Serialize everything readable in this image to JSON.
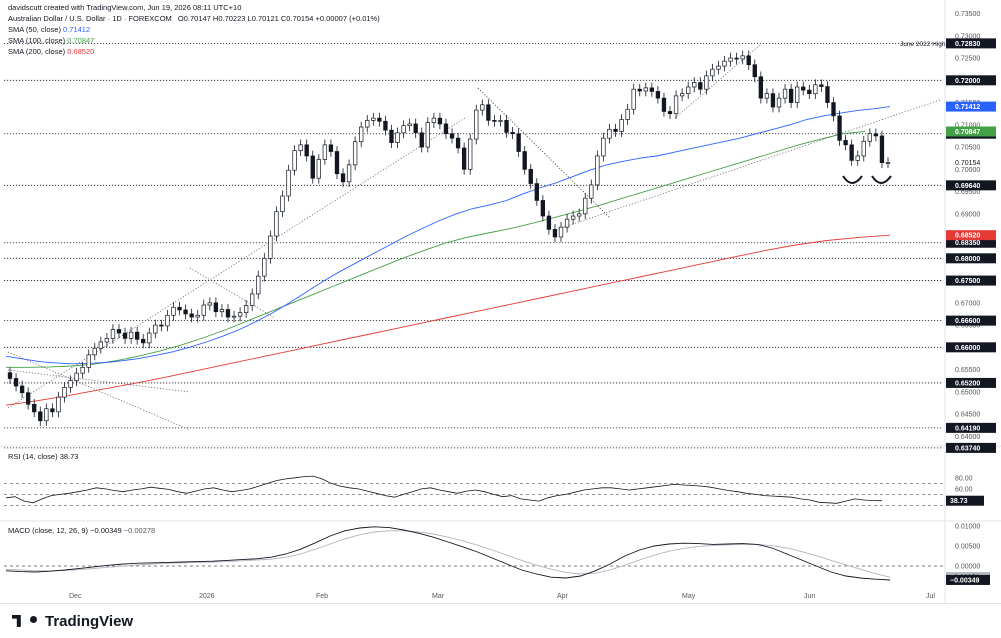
{
  "header": {
    "credit": "davidscutt created with TradingView.com, Jun 19, 2026 08:11 UTC+10",
    "symbol": "Australian Dollar / U.S. Dollar · 1D · FOREXCOM",
    "ohlc": "O0.70147 H0.70223 L0.70121 C0.70154 +0.00007 (+0.01%)",
    "sma50_label": "SMA (50, close)",
    "sma50_value": "0.71412",
    "sma100_label": "SMA (100, close)",
    "sma100_value": "0.70847",
    "sma200_label": "SMA (200, close)",
    "sma200_value": "0.68520",
    "rsi_label": "RSI (14, close)",
    "rsi_value": "38.73",
    "macd_label": "MACD (close, 12, 26, 9)",
    "macd_value": "−0.00349",
    "macd_signal_value": "−0.00278"
  },
  "colors": {
    "up": "#ffffff",
    "down": "#131722",
    "sma50": "#2962ff",
    "sma100": "#43a047",
    "sma200": "#e53935",
    "rsi": "#131722",
    "macd": "#131722",
    "signal": "#b2b5be"
  },
  "annotation": {
    "june_high": "June 2022 High"
  },
  "footer": {
    "brand": "TradingView"
  },
  "chart_data": {
    "type": "candlestick",
    "x_ticks": [
      "Dec",
      "2026",
      "Feb",
      "Mar",
      "Apr",
      "May",
      "Jun",
      "Jul"
    ],
    "y_ticks": [
      "0.73500",
      "0.73000",
      "0.72500",
      "0.72000",
      "0.71500",
      "0.71000",
      "0.70500",
      "0.70000",
      "0.69500",
      "0.69000",
      "0.68500",
      "0.68000",
      "0.67500",
      "0.67000",
      "0.66500",
      "0.66000",
      "0.65500",
      "0.65000",
      "0.64500",
      "0.64000"
    ],
    "ylim": [
      0.6385,
      0.7358
    ],
    "levels": [
      0.7283,
      0.72,
      0.708,
      0.6964,
      0.6835,
      0.68,
      0.675,
      0.666,
      0.66,
      0.652,
      0.6419,
      0.6374
    ],
    "level_labels": [
      "0.72830",
      "0.72000",
      "0.70800",
      "0.69640",
      "0.68350",
      "0.68000",
      "0.67500",
      "0.66600",
      "0.66000",
      "0.65200",
      "0.64190",
      "0.63740"
    ],
    "last_price": "0.70154",
    "candles_close": [
      0.653,
      0.6513,
      0.6498,
      0.6472,
      0.6455,
      0.6435,
      0.6462,
      0.6455,
      0.6488,
      0.651,
      0.6525,
      0.6542,
      0.6555,
      0.6583,
      0.6598,
      0.6612,
      0.662,
      0.664,
      0.6632,
      0.662,
      0.6634,
      0.6618,
      0.661,
      0.6632,
      0.665,
      0.6648,
      0.6672,
      0.669,
      0.6684,
      0.6675,
      0.6668,
      0.6672,
      0.6695,
      0.67,
      0.668,
      0.6685,
      0.6668,
      0.667,
      0.6678,
      0.6694,
      0.672,
      0.676,
      0.68,
      0.685,
      0.6905,
      0.694,
      0.6998,
      0.7042,
      0.7055,
      0.703,
      0.698,
      0.7022,
      0.7055,
      0.704,
      0.699,
      0.6972,
      0.701,
      0.7062,
      0.7095,
      0.711,
      0.7115,
      0.7108,
      0.7088,
      0.706,
      0.7082,
      0.7098,
      0.7102,
      0.7082,
      0.705,
      0.7105,
      0.7115,
      0.7102,
      0.708,
      0.707,
      0.7048,
      0.7,
      0.7068,
      0.7133,
      0.7145,
      0.711,
      0.7108,
      0.711,
      0.7083,
      0.708,
      0.704,
      0.7,
      0.6968,
      0.693,
      0.6895,
      0.6865,
      0.6848,
      0.687,
      0.6888,
      0.6895,
      0.69,
      0.6935,
      0.6965,
      0.703,
      0.707,
      0.709,
      0.7085,
      0.7112,
      0.7135,
      0.718,
      0.7176,
      0.7183,
      0.7175,
      0.716,
      0.713,
      0.7125,
      0.7165,
      0.717,
      0.7185,
      0.7195,
      0.718,
      0.721,
      0.7225,
      0.7232,
      0.7243,
      0.725,
      0.7248,
      0.7255,
      0.7235,
      0.7208,
      0.716,
      0.717,
      0.714,
      0.716,
      0.718,
      0.715,
      0.7185,
      0.7178,
      0.717,
      0.719,
      0.7186,
      0.715,
      0.712,
      0.7065,
      0.7055,
      0.702,
      0.703,
      0.7063,
      0.708,
      0.7075,
      0.7015,
      0.7015
    ],
    "candles_open": [
      0.6543,
      0.653,
      0.6513,
      0.6498,
      0.6472,
      0.6455,
      0.6435,
      0.6462,
      0.6455,
      0.6488,
      0.651,
      0.6525,
      0.6542,
      0.6555,
      0.6583,
      0.6598,
      0.6612,
      0.662,
      0.664,
      0.6632,
      0.662,
      0.6634,
      0.6618,
      0.661,
      0.6632,
      0.665,
      0.6648,
      0.6672,
      0.669,
      0.6684,
      0.6675,
      0.6668,
      0.6672,
      0.6695,
      0.67,
      0.668,
      0.6685,
      0.6668,
      0.667,
      0.6678,
      0.6694,
      0.672,
      0.676,
      0.68,
      0.685,
      0.6905,
      0.694,
      0.6998,
      0.7042,
      0.7055,
      0.703,
      0.698,
      0.7022,
      0.7055,
      0.704,
      0.699,
      0.6972,
      0.701,
      0.7062,
      0.7095,
      0.711,
      0.7115,
      0.7108,
      0.7088,
      0.706,
      0.7082,
      0.7098,
      0.7102,
      0.7082,
      0.705,
      0.7105,
      0.7115,
      0.7102,
      0.708,
      0.707,
      0.7048,
      0.7,
      0.7068,
      0.7133,
      0.7145,
      0.711,
      0.7108,
      0.711,
      0.7083,
      0.708,
      0.704,
      0.7,
      0.6968,
      0.693,
      0.6895,
      0.6865,
      0.6848,
      0.687,
      0.6888,
      0.6895,
      0.69,
      0.6935,
      0.6965,
      0.703,
      0.707,
      0.709,
      0.7085,
      0.7112,
      0.7135,
      0.718,
      0.7176,
      0.7183,
      0.7175,
      0.716,
      0.713,
      0.7125,
      0.7165,
      0.717,
      0.7185,
      0.7195,
      0.718,
      0.721,
      0.7225,
      0.7232,
      0.7243,
      0.725,
      0.7248,
      0.7255,
      0.7235,
      0.7208,
      0.716,
      0.717,
      0.714,
      0.716,
      0.718,
      0.715,
      0.7185,
      0.7178,
      0.717,
      0.719,
      0.7186,
      0.715,
      0.712,
      0.7065,
      0.7055,
      0.702,
      0.703,
      0.7063,
      0.708,
      0.7075,
      0.7015
    ],
    "sma50": [
      0.658,
      0.6574,
      0.6568,
      0.6565,
      0.6563,
      0.6564,
      0.6566,
      0.657,
      0.6575,
      0.6582,
      0.659,
      0.66,
      0.6612,
      0.6625,
      0.664,
      0.6658,
      0.6678,
      0.67,
      0.6724,
      0.6748,
      0.677,
      0.679,
      0.681,
      0.683,
      0.685,
      0.6868,
      0.6885,
      0.69,
      0.6912,
      0.692,
      0.693,
      0.6945,
      0.6958,
      0.697,
      0.6984,
      0.6998,
      0.701,
      0.7018,
      0.7025,
      0.703,
      0.7038,
      0.7046,
      0.7054,
      0.7062,
      0.707,
      0.708,
      0.709,
      0.71,
      0.7112,
      0.712,
      0.7126,
      0.7132,
      0.7136,
      0.7141
    ],
    "sma100": [
      0.6555,
      0.6555,
      0.6556,
      0.6558,
      0.6562,
      0.657,
      0.658,
      0.6592,
      0.6606,
      0.6622,
      0.664,
      0.666,
      0.668,
      0.67,
      0.672,
      0.674,
      0.676,
      0.678,
      0.68,
      0.6818,
      0.6835,
      0.6848,
      0.6858,
      0.6868,
      0.688,
      0.6893,
      0.6906,
      0.692,
      0.6935,
      0.695,
      0.6965,
      0.698,
      0.6995,
      0.701,
      0.7025,
      0.704,
      0.7055,
      0.7068,
      0.708,
      0.7085
    ],
    "sma200": [
      0.647,
      0.648,
      0.6492,
      0.6505,
      0.6518,
      0.6532,
      0.6547,
      0.6562,
      0.6577,
      0.6592,
      0.6607,
      0.6622,
      0.6637,
      0.6652,
      0.6667,
      0.6682,
      0.6697,
      0.6712,
      0.6727,
      0.6742,
      0.6757,
      0.6772,
      0.6787,
      0.6802,
      0.6817,
      0.683,
      0.684,
      0.6847,
      0.6852
    ],
    "rsi": {
      "ticks": [
        "80.00",
        "60.00",
        "40.00"
      ],
      "levels": [
        70,
        50,
        30
      ],
      "value": "38.73",
      "values": [
        44,
        46,
        38,
        35,
        42,
        48,
        50,
        52,
        55,
        58,
        62,
        60,
        57,
        55,
        58,
        60,
        63,
        61,
        59,
        55,
        52,
        56,
        60,
        62,
        58,
        55,
        57,
        60,
        65,
        70,
        75,
        78,
        80,
        82,
        83,
        78,
        70,
        65,
        62,
        60,
        56,
        52,
        48,
        45,
        50,
        55,
        60,
        62,
        58,
        55,
        52,
        56,
        58,
        55,
        50,
        46,
        48,
        42,
        40,
        38,
        44,
        48,
        50,
        54,
        58,
        60,
        62,
        62,
        60,
        58,
        60,
        62,
        64,
        66,
        68,
        67,
        66,
        65,
        63,
        60,
        57,
        55,
        52,
        50,
        48,
        47,
        46,
        45,
        42,
        40,
        36,
        35,
        34,
        38,
        42,
        40,
        39,
        38.7
      ]
    },
    "macd": {
      "ticks": [
        "0.01000",
        "0.00500",
        "0.00000"
      ],
      "value": "−0.00349",
      "signal_value": "−0.00278",
      "macd": [
        -0.0012,
        -0.0014,
        -0.0015,
        -0.0013,
        -0.001,
        -0.0006,
        -0.0002,
        0.0002,
        0.0005,
        0.0007,
        0.0008,
        0.0009,
        0.001,
        0.0011,
        0.0012,
        0.0014,
        0.0016,
        0.0018,
        0.0022,
        0.003,
        0.0042,
        0.0058,
        0.0075,
        0.0088,
        0.0095,
        0.0098,
        0.0096,
        0.009,
        0.0082,
        0.0072,
        0.006,
        0.0048,
        0.0035,
        0.002,
        0.0005,
        -0.001,
        -0.002,
        -0.0028,
        -0.003,
        -0.0025,
        -0.0012,
        0.0005,
        0.0025,
        0.004,
        0.005,
        0.0055,
        0.0057,
        0.0056,
        0.0054,
        0.0055,
        0.0056,
        0.0054,
        0.0045,
        0.003,
        0.0015,
        0.0,
        -0.0015,
        -0.0025,
        -0.003,
        -0.0033,
        -0.0035
      ],
      "signal": [
        -0.0008,
        -0.001,
        -0.0012,
        -0.0012,
        -0.0011,
        -0.0009,
        -0.0006,
        -0.0003,
        0.0,
        0.0003,
        0.0005,
        0.0007,
        0.0008,
        0.0009,
        0.001,
        0.0011,
        0.0013,
        0.0015,
        0.0017,
        0.0022,
        0.003,
        0.0042,
        0.0055,
        0.0068,
        0.0078,
        0.0085,
        0.0088,
        0.0088,
        0.0085,
        0.008,
        0.0072,
        0.0063,
        0.0052,
        0.004,
        0.0027,
        0.0014,
        0.0002,
        -0.0008,
        -0.0016,
        -0.002,
        -0.0018,
        -0.001,
        0.0002,
        0.0015,
        0.0027,
        0.0037,
        0.0044,
        0.0049,
        0.0051,
        0.0053,
        0.0054,
        0.0054,
        0.0051,
        0.0045,
        0.0036,
        0.0026,
        0.0014,
        0.0003,
        -0.0008,
        -0.0019,
        -0.0028
      ]
    }
  }
}
